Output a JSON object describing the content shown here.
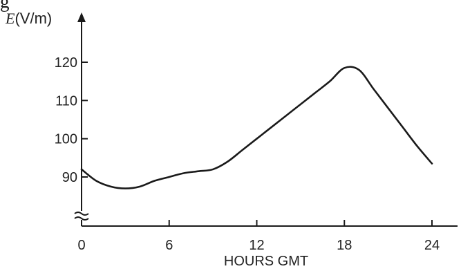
{
  "page": {
    "cropped_top_text": "g"
  },
  "chart_data": {
    "type": "line",
    "ylabel_symbol": "E",
    "ylabel_unit": "(V/m)",
    "xlabel": "HOURS GMT",
    "xlim": [
      0,
      24
    ],
    "ylim": [
      80,
      125
    ],
    "x_ticks": [
      0,
      6,
      12,
      18,
      24
    ],
    "y_ticks": [
      90,
      100,
      110,
      120
    ],
    "axis_break": true,
    "grid": false,
    "x": [
      0,
      1,
      2,
      3,
      4,
      5,
      6,
      7,
      8,
      9,
      10,
      11,
      12,
      13,
      14,
      15,
      16,
      17,
      18,
      19,
      20,
      21,
      22,
      23,
      24
    ],
    "values": [
      92,
      89,
      87.5,
      87,
      87.5,
      89,
      90,
      91,
      91.5,
      92,
      94,
      97,
      100,
      103,
      106,
      109,
      112,
      115,
      118.5,
      118,
      113,
      108,
      103,
      98,
      93.5
    ],
    "colors": {
      "line": "#1a1a1a",
      "axis": "#1a1a1a"
    }
  }
}
